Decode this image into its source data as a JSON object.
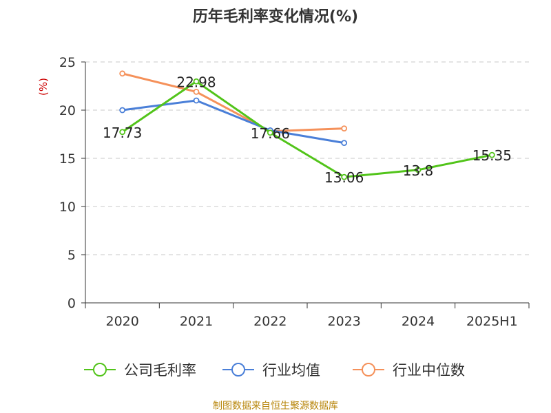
{
  "chart_data": {
    "type": "line",
    "title": "历年毛利率变化情况(%)",
    "ylabel": "(%)",
    "xlabel": "",
    "categories": [
      "2020",
      "2021",
      "2022",
      "2023",
      "2024",
      "2025H1"
    ],
    "yticks": [
      "0",
      "5",
      "10",
      "15",
      "20",
      "25"
    ],
    "ylim": [
      0,
      25
    ],
    "grid": true,
    "legend_position": "bottom",
    "series": [
      {
        "name": "公司毛利率",
        "color": "#52c41a",
        "values": [
          17.73,
          22.98,
          17.66,
          13.06,
          13.8,
          15.35
        ],
        "labels": [
          "17.73",
          "22.98",
          "17.66",
          "13.06",
          "13.8",
          "15.35"
        ]
      },
      {
        "name": "行业均值",
        "color": "#4a7fd8",
        "values": [
          20.0,
          21.0,
          17.9,
          16.6,
          null,
          null
        ]
      },
      {
        "name": "行业中位数",
        "color": "#f5915a",
        "values": [
          23.8,
          21.9,
          17.8,
          18.1,
          null,
          null
        ]
      }
    ],
    "source": "制图数据来自恒生聚源数据库"
  }
}
